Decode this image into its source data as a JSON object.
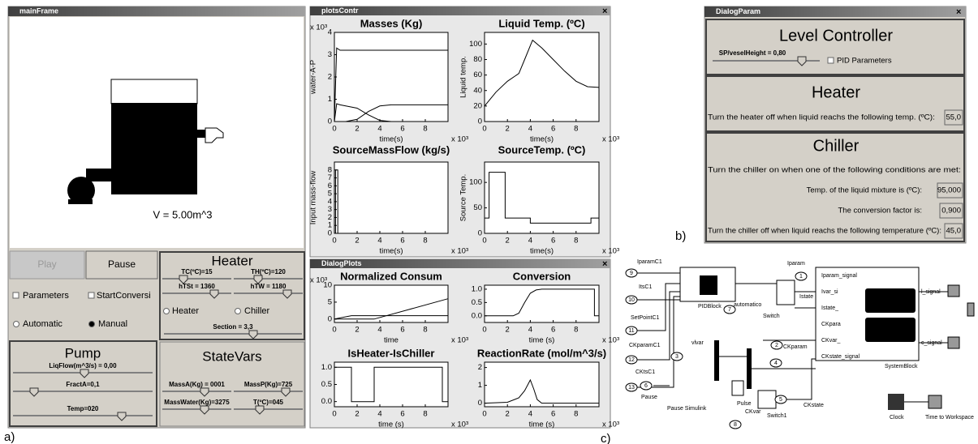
{
  "figure_labels": {
    "a": "a)",
    "b": "b)",
    "c": "c)"
  },
  "main_frame": {
    "title": "mainFrame",
    "volume": "V = 5.00m^3",
    "buttons": [
      "Play",
      "Pause"
    ],
    "checkboxes": [
      "Parameters",
      "StartConversi"
    ],
    "radios": [
      "Automatic",
      "Manual"
    ],
    "heater": {
      "title": "Heater",
      "sliders": [
        "TC(ºC)=15",
        "TH(ºC)=120",
        "hTSt = 1360",
        "hTW = 1180"
      ],
      "radios": [
        "Heater",
        "Chiller"
      ],
      "section": "Section = 3,3"
    },
    "pump": {
      "title": "Pump",
      "sliders": [
        "LiqFlow(m^3/s) = 0,00",
        "FractA=0,1",
        "Temp=020"
      ]
    },
    "state_vars": {
      "title": "StateVars",
      "sliders": [
        "MassA(Kg) = 0001",
        "MassP(Kg)=725",
        "MassWater(Kg)=3275",
        "T(ºC)=045"
      ]
    }
  },
  "plots_window_title": "plotsContr",
  "dialog_plots_title": "DialogPlots",
  "chart_data": [
    {
      "type": "line",
      "title": "Masses (Kg)",
      "ylabel": "water-A-P",
      "xlabel": "time(s)",
      "x_multiplier": "x 10³",
      "y_multiplier": "x 10³",
      "xlim": [
        0,
        10
      ],
      "ylim": [
        0,
        4
      ],
      "xticks": [
        0,
        2,
        4,
        6,
        8
      ],
      "yticks": [
        0,
        1,
        2,
        3,
        4
      ],
      "x": [
        0,
        0.2,
        0.5,
        1,
        2,
        3,
        4,
        5,
        6,
        8,
        10
      ],
      "series": [
        {
          "color": "#000000",
          "values": [
            0,
            3.3,
            3.2,
            3.2,
            3.2,
            3.2,
            3.2,
            3.2,
            3.2,
            3.2,
            3.2
          ]
        },
        {
          "color": "#000000",
          "values": [
            0,
            0.8,
            0.75,
            0.7,
            0.6,
            0.3,
            0.05,
            0,
            0,
            0,
            0
          ]
        },
        {
          "color": "#000000",
          "values": [
            0,
            0,
            0,
            0,
            0.1,
            0.45,
            0.7,
            0.75,
            0.75,
            0.75,
            0.75
          ]
        }
      ]
    },
    {
      "type": "line",
      "title": "Liquid Temp. (ºC)",
      "ylabel": "Liquid temp.",
      "xlabel": "time(s)",
      "x_multiplier": "x 10³",
      "xlim": [
        0,
        10
      ],
      "ylim": [
        0,
        115
      ],
      "xticks": [
        0,
        2,
        4,
        6,
        8
      ],
      "yticks": [
        0,
        20,
        40,
        60,
        80,
        100
      ],
      "x": [
        0,
        1,
        2,
        3,
        3.5,
        4,
        4.2,
        5,
        6,
        7,
        8,
        9,
        10
      ],
      "series": [
        {
          "color": "#000000",
          "values": [
            20,
            38,
            52,
            62,
            80,
            98,
            105,
            95,
            80,
            65,
            52,
            45,
            44
          ]
        }
      ]
    },
    {
      "type": "line",
      "title": "SourceMassFlow (kg/s)",
      "ylabel": "Input mass-flow",
      "xlabel": "time(s)",
      "x_multiplier": "x 10³",
      "xlim": [
        0,
        10
      ],
      "ylim": [
        0,
        9
      ],
      "xticks": [
        0,
        2,
        4,
        6,
        8
      ],
      "yticks": [
        0,
        1,
        2,
        3,
        4,
        5,
        6,
        7,
        8
      ],
      "x": [
        0,
        0.1,
        0.1,
        0.3,
        0.3,
        10
      ],
      "series": [
        {
          "color": "#000000",
          "values": [
            0,
            0,
            8,
            8,
            0,
            0
          ]
        }
      ]
    },
    {
      "type": "line",
      "title": "SourceTemp. (ºC)",
      "ylabel": "Source Temp.",
      "xlabel": "time(s)",
      "x_multiplier": "x 10³",
      "xlim": [
        0,
        10
      ],
      "ylim": [
        0,
        140
      ],
      "xticks": [
        0,
        2,
        4,
        6,
        8
      ],
      "yticks": [
        0,
        50,
        100
      ],
      "x": [
        0,
        0.4,
        0.4,
        1.8,
        1.8,
        4,
        4,
        9.3,
        9.3,
        10
      ],
      "series": [
        {
          "color": "#000000",
          "values": [
            30,
            30,
            120,
            120,
            30,
            30,
            20,
            20,
            30,
            30
          ]
        }
      ]
    },
    {
      "type": "line",
      "title": "Normalized Consum",
      "xlabel": "time",
      "x_multiplier": "x 10³",
      "y_multiplier": "x 10³",
      "xlim": [
        0,
        10
      ],
      "ylim": [
        -1,
        10
      ],
      "xticks": [
        0,
        2,
        4,
        6,
        8
      ],
      "yticks": [
        0,
        5,
        10
      ],
      "x": [
        0,
        1.5,
        3.5,
        10
      ],
      "series": [
        {
          "color": "#000000",
          "values": [
            0,
            1,
            1,
            1
          ]
        },
        {
          "color": "#000000",
          "values": [
            0,
            0,
            0,
            6
          ]
        }
      ]
    },
    {
      "type": "line",
      "title": "Conversion",
      "xlabel": "time (s)",
      "x_multiplier": "x 10³",
      "xlim": [
        0,
        10
      ],
      "ylim": [
        -0.25,
        1.15
      ],
      "xticks": [
        0,
        2,
        4,
        6,
        8
      ],
      "yticks": [
        {
          "value": 0,
          "label": "0.0"
        },
        {
          "value": 0.5,
          "label": "0.5"
        },
        {
          "value": 1,
          "label": "1.0"
        }
      ],
      "x": [
        0,
        2.5,
        3,
        3.5,
        4,
        4.5,
        5,
        9.6,
        9.6,
        10
      ],
      "series": [
        {
          "color": "#000000",
          "values": [
            0,
            0,
            0.1,
            0.5,
            0.85,
            0.97,
            1,
            1,
            0,
            0
          ]
        }
      ]
    },
    {
      "type": "line",
      "title": "IsHeater-IsChiller",
      "xlabel": "time (s)",
      "x_multiplier": "x 10³",
      "xlim": [
        0,
        10
      ],
      "ylim": [
        -0.15,
        1.15
      ],
      "xticks": [
        0,
        2,
        4,
        6,
        8
      ],
      "yticks": [
        {
          "value": 0,
          "label": "0.0"
        },
        {
          "value": 0.5,
          "label": "0.5"
        },
        {
          "value": 1,
          "label": "1.0"
        }
      ],
      "x": [
        0,
        1.5,
        1.5,
        3.5,
        3.5,
        9.5,
        9.5,
        10
      ],
      "series": [
        {
          "color": "#000000",
          "values": [
            1,
            1,
            0,
            0,
            1,
            1,
            0,
            0
          ]
        }
      ]
    },
    {
      "type": "line",
      "title": "ReactionRate (mol/m^3/s)",
      "xlabel": "time (s)",
      "x_multiplier": "x 10³",
      "xlim": [
        0,
        10
      ],
      "ylim": [
        -0.2,
        2.3
      ],
      "xticks": [
        0,
        2,
        4,
        6,
        8
      ],
      "yticks": [
        0,
        1,
        2
      ],
      "x": [
        0,
        2,
        3,
        3.5,
        4,
        4.3,
        4.6,
        5,
        10
      ],
      "series": [
        {
          "color": "#000000",
          "values": [
            0,
            0.05,
            0.3,
            0.7,
            1.3,
            0.8,
            0.2,
            0,
            0
          ]
        }
      ]
    }
  ],
  "dialog_param": {
    "title": "DialogParam",
    "level_title": "Level Controller",
    "setpoint": "SP/veselHeight = 0,80",
    "pid": "PID Parameters",
    "heater_title": "Heater",
    "heater_text": "Turn the heater off when liquid reachs the following temp. (ºC):",
    "heater_value": "55,0",
    "chiller_title": "Chiller",
    "chiller_text": "Turn the chiller on when one of the following conditions are met:",
    "temp_text": "Temp. of the liquid mixture is (ºC):",
    "temp_value": "95,000",
    "conv_text": "The conversion factor is:",
    "conv_value": "0,900",
    "off_text": "Turn the chiller off when liquid reachs the following temperature (ºC):",
    "off_value": "45,0"
  },
  "simulink": {
    "labels": [
      "IparamC1",
      "ItsC1",
      "SetPointC1",
      "CKparamC1",
      "CKtsC1",
      "Pause",
      "Pause Simulink",
      "PIDBlock",
      "automatico",
      "Switch",
      "Iparam",
      "Istate",
      "vlvar",
      "CKparam",
      "CKstate",
      "Pulse",
      "CKvar",
      "Switch1",
      "SystemBlock",
      "Iparam_signal",
      "Ivar_si",
      "Istate_",
      "CKpara",
      "CKvar_",
      "CKstate_signal",
      "l_signal",
      "c_signal",
      "Clock",
      "Time to Workspace"
    ],
    "ports": [
      "9",
      "10",
      "11",
      "12",
      "13",
      "6",
      "3",
      "7",
      "1",
      "2",
      "4",
      "5",
      "8"
    ]
  }
}
